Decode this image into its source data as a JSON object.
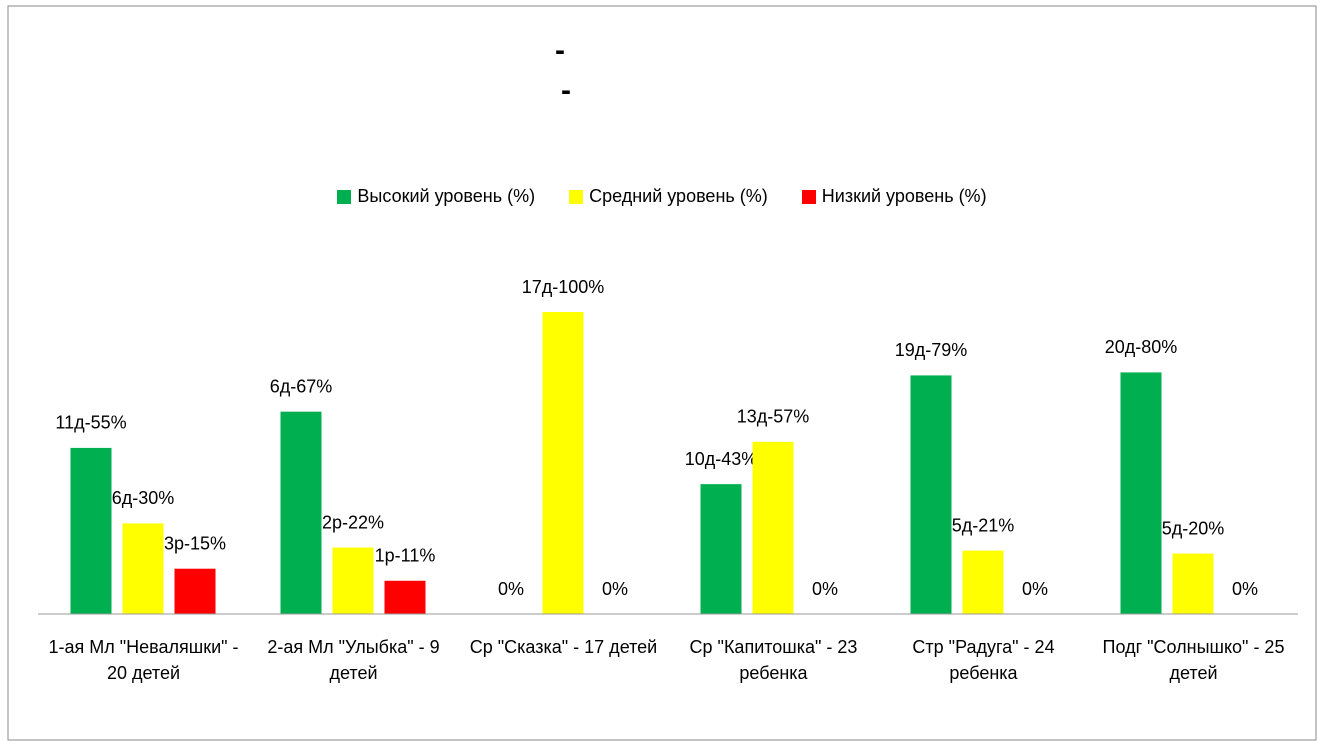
{
  "chart_data": {
    "type": "bar",
    "title": [
      "-",
      "-"
    ],
    "categories": [
      "1-ая Мл \"Неваляшки\" - 20 детей",
      "2-ая Мл \"Улыбка\" - 9 детей",
      "Ср \"Сказка\" - 17 детей",
      "Ср \"Капитошка\" - 23 ребенка",
      "Стр \"Радуга\" - 24 ребенка",
      "Подг \"Солнышко\" - 25 детей"
    ],
    "series": [
      {
        "name": "Высокий уровень (%)",
        "color": "#00b050",
        "values": [
          55,
          67,
          0,
          43,
          79,
          80
        ],
        "value_labels": [
          "11д-55%",
          "6д-67%",
          "0%",
          "10д-43%",
          "19д-79%",
          "20д-80%"
        ]
      },
      {
        "name": "Средний уровень (%)",
        "color": "#ffff00",
        "values": [
          30,
          22,
          100,
          57,
          21,
          20
        ],
        "value_labels": [
          "6д-30%",
          "2р-22%",
          "17д-100%",
          "13д-57%",
          "5д-21%",
          "5д-20%"
        ]
      },
      {
        "name": "Низкий уровень (%)",
        "color": "#ff0000",
        "values": [
          15,
          11,
          0,
          0,
          0,
          0
        ],
        "value_labels": [
          "3р-15%",
          "1р-11%",
          "0%",
          "0%",
          "0%",
          "0%"
        ]
      }
    ],
    "ylim": [
      0,
      100
    ],
    "legend": "top"
  }
}
